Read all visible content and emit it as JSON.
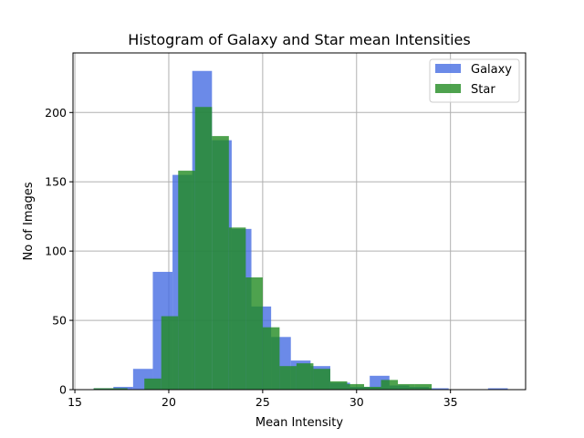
{
  "chart_data": {
    "type": "bar",
    "title": "Histogram of Galaxy and Star mean Intensities",
    "xlabel": "Mean Intensity",
    "ylabel": "No of Images",
    "xlim": [
      14.9,
      39.0
    ],
    "ylim": [
      0,
      243
    ],
    "xticks": [
      15,
      20,
      25,
      30,
      35
    ],
    "yticks": [
      0,
      50,
      100,
      150,
      200
    ],
    "grid": true,
    "legend_position": "top-right",
    "series": [
      {
        "name": "Galaxy",
        "color": "#4169e1",
        "opacity": 0.78,
        "bin_edges": [
          16.0,
          17.05,
          18.1,
          19.15,
          20.2,
          21.25,
          22.3,
          23.35,
          24.4,
          25.45,
          26.5,
          27.55,
          28.6,
          29.65,
          30.7,
          31.75,
          32.8,
          33.85,
          34.9,
          35.95,
          37.0,
          38.05
        ],
        "values": [
          1,
          2,
          15,
          85,
          155,
          230,
          180,
          116,
          60,
          38,
          21,
          17,
          5,
          2,
          10,
          3,
          2,
          1,
          0,
          0,
          1
        ]
      },
      {
        "name": "Star",
        "color": "#228b22",
        "opacity": 0.8,
        "bin_edges": [
          16.0,
          16.9,
          17.8,
          18.7,
          19.6,
          20.5,
          21.4,
          22.3,
          23.2,
          24.1,
          25.0,
          25.9,
          26.8,
          27.7,
          28.6,
          29.5,
          30.4,
          31.3,
          32.2,
          33.1,
          34.0
        ],
        "values": [
          1,
          1,
          0,
          8,
          53,
          158,
          204,
          183,
          117,
          81,
          45,
          17,
          19,
          15,
          6,
          4,
          2,
          7,
          4,
          4
        ]
      }
    ]
  }
}
